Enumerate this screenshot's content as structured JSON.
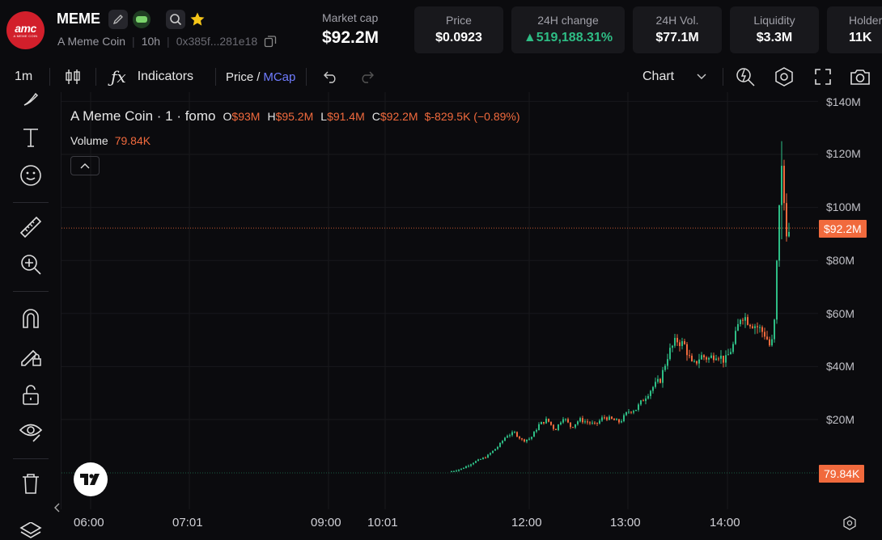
{
  "token": {
    "logo_text": "amc",
    "logo_subtext": "A MEME COIN",
    "ticker": "MEME",
    "name": "A Meme Coin",
    "age": "10h",
    "address": "0x385f...281e18"
  },
  "stats": {
    "market_cap_label": "Market cap",
    "market_cap_value": "$92.2M",
    "price_label": "Price",
    "price_value": "$0.0923",
    "change_label": "24H change",
    "change_value": "▲519,188.31%",
    "vol_label": "24H Vol.",
    "vol_value": "$77.1M",
    "liq_label": "Liquidity",
    "liq_value": "$3.3M",
    "holders_label": "Holders",
    "holders_value": "11K"
  },
  "toolbar": {
    "interval": "1m",
    "indicators": "Indicators",
    "price": "Price",
    "slash": "/",
    "mcap": "MCap",
    "chart_menu": "Chart"
  },
  "legend": {
    "title": "A Meme Coin · 1 · fomo",
    "o_key": "O",
    "o_val": "$93M",
    "h_key": "H",
    "h_val": "$95.2M",
    "l_key": "L",
    "l_val": "$91.4M",
    "c_key": "C",
    "c_val": "$92.2M",
    "change": "$-829.5K (−0.89%)",
    "volume_label": "Volume",
    "volume_value": "79.84K"
  },
  "price_axis": {
    "labels": [
      "$140M",
      "$120M",
      "$100M",
      "$80M",
      "$60M",
      "$40M",
      "$20M"
    ],
    "current_price_tag": "$92.2M",
    "volume_tag": "79.84K"
  },
  "time_axis": {
    "labels": [
      "06:00",
      "07:01",
      "09:00",
      "10:01",
      "12:00",
      "13:00",
      "14:00"
    ]
  },
  "colors": {
    "background": "#0b0b0e",
    "up": "#2ebd85",
    "down": "#f16a3d",
    "accent_blue": "#6f7cff",
    "panel": "#18181c"
  }
}
